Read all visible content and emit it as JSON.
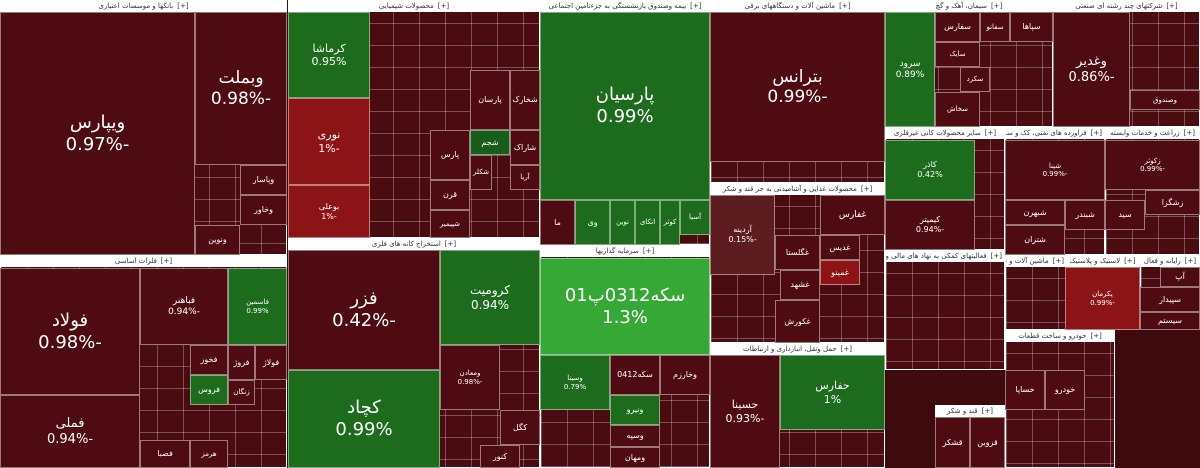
{
  "expand_label": "[+]",
  "sectors": [
    {
      "title": "بانکها و موسسات اعتباری",
      "tiles": [
        {
          "name": "ویپارس",
          "change": "-0.97%"
        },
        {
          "name": "وبملت",
          "change": "-0.98%"
        },
        {
          "name": "وپاسار"
        },
        {
          "name": "وخاور"
        },
        {
          "name": "ونوین"
        }
      ]
    },
    {
      "title": "محصولات شیمیایی",
      "tiles": [
        {
          "name": "کرماشا",
          "change": "0.95%"
        },
        {
          "name": "نوری",
          "change": "-1%"
        },
        {
          "name": "بوعلی",
          "change": "-1%"
        },
        {
          "name": "پارسان"
        },
        {
          "name": "شخارک"
        },
        {
          "name": "شاراک"
        },
        {
          "name": "شجم"
        },
        {
          "name": "پارس"
        },
        {
          "name": "شکلر"
        },
        {
          "name": "آریا"
        },
        {
          "name": "قرن"
        },
        {
          "name": "شپیمیر"
        }
      ]
    },
    {
      "title": "بیمه وصندوق بازنشستگی به جزءتامین اجتماعی",
      "tiles": [
        {
          "name": "پارسیان",
          "change": "0.99%"
        },
        {
          "name": "ما"
        },
        {
          "name": "وی"
        },
        {
          "name": "نوین"
        },
        {
          "name": "اتکای"
        },
        {
          "name": "کوثر"
        },
        {
          "name": "آسیا"
        }
      ]
    },
    {
      "title": "ماشین آلات و دستگاههای برقی",
      "tiles": [
        {
          "name": "بترانس",
          "change": "-0.99%"
        }
      ]
    },
    {
      "title": "سیمان، آهک و گچ",
      "tiles": [
        {
          "name": "سرود",
          "change": "0.89%"
        },
        {
          "name": "سفارس"
        },
        {
          "name": "سفانو"
        },
        {
          "name": "سپاها"
        },
        {
          "name": "سایک"
        },
        {
          "name": "سکرد"
        },
        {
          "name": "سخاش"
        }
      ]
    },
    {
      "title": "شرکتهای چند رشته ای صنعتی",
      "tiles": [
        {
          "name": "وغدیر",
          "change": "-0.86%"
        },
        {
          "name": "وصندوق"
        }
      ]
    },
    {
      "title": "فلزات اساسی",
      "tiles": [
        {
          "name": "فولاد",
          "change": "-0.98%"
        },
        {
          "name": "فملی",
          "change": "-0.94%"
        },
        {
          "name": "فباهنر",
          "change": "-0.94%"
        },
        {
          "name": "فاسمین",
          "change": "0.99%"
        },
        {
          "name": "فخوز"
        },
        {
          "name": "فروژ"
        },
        {
          "name": "فولاژ"
        },
        {
          "name": "زنگان"
        },
        {
          "name": "فروس"
        },
        {
          "name": "فصبا"
        },
        {
          "name": "هرمز"
        }
      ]
    },
    {
      "title": "استخراج کانه های فلزی",
      "tiles": [
        {
          "name": "فزر",
          "change": "-0.42%"
        },
        {
          "name": "کرومیت",
          "change": "0.94%"
        },
        {
          "name": "کچاد",
          "change": "0.99%"
        },
        {
          "name": "ومعادن",
          "change": "-0.98%"
        },
        {
          "name": "کگل"
        },
        {
          "name": "کنور"
        }
      ]
    },
    {
      "title": "سرمایه گذاریها",
      "tiles": [
        {
          "name": "سکه0312پ01",
          "change": "1.3%"
        },
        {
          "name": "سکه0412"
        },
        {
          "name": "وسینا",
          "change": "0.79%"
        },
        {
          "name": "ونیرو"
        },
        {
          "name": "وسپه"
        },
        {
          "name": "ومهان"
        },
        {
          "name": "وخارزم"
        }
      ]
    },
    {
      "title": "محصولات غذایی و آشامیدنی به جز قند و شکر",
      "tiles": [
        {
          "name": "آردینه",
          "change": "-0.15%"
        },
        {
          "name": "غفارس"
        },
        {
          "name": "غدیس"
        },
        {
          "name": "غشهد"
        },
        {
          "name": "غمینو"
        },
        {
          "name": "غکورش"
        },
        {
          "name": "غگلستا"
        }
      ]
    },
    {
      "title": "حمل ونقل، انبارداری و ارتباطات",
      "tiles": [
        {
          "name": "حسینا",
          "change": "-0.93%"
        },
        {
          "name": "حفارس",
          "change": "1%"
        }
      ]
    },
    {
      "title": "سایر محصولات کانی غیرفلزی",
      "tiles": [
        {
          "name": "کاذر",
          "change": "0.42%"
        },
        {
          "name": "کیمیتر",
          "change": "-0.94%"
        }
      ]
    },
    {
      "title": "فراورده های نفتی، کک و سو",
      "tiles": [
        {
          "name": "شپنا",
          "change": "-0.99%"
        },
        {
          "name": "شبهرن"
        },
        {
          "name": "شتران"
        },
        {
          "name": "شبندر"
        }
      ]
    },
    {
      "title": "زراعت و خدمات وابسته",
      "tiles": [
        {
          "name": "زکوثر",
          "change": "-0.99%"
        },
        {
          "name": "زشگزا"
        },
        {
          "name": "سيد"
        }
      ]
    },
    {
      "title": "فعالیتهای کمکی به نهاد های مالی واسط",
      "tiles": []
    },
    {
      "title": "ماشین آلات و تجهیزات",
      "tiles": []
    },
    {
      "title": "لاستیک و پلاستیک",
      "tiles": [
        {
          "name": "پکرمان",
          "change": "-0.99%"
        }
      ]
    },
    {
      "title": "رایانه و فعال",
      "tiles": [
        {
          "name": "آپ"
        },
        {
          "name": "سپیدار"
        },
        {
          "name": "سیستم"
        }
      ]
    },
    {
      "title": "خودرو و ساخت قطعات",
      "tiles": [
        {
          "name": "خساپا"
        },
        {
          "name": "خودرو"
        }
      ]
    },
    {
      "title": "قند و شکر",
      "tiles": [
        {
          "name": "قشکر"
        },
        {
          "name": "قزوین"
        }
      ]
    }
  ]
}
